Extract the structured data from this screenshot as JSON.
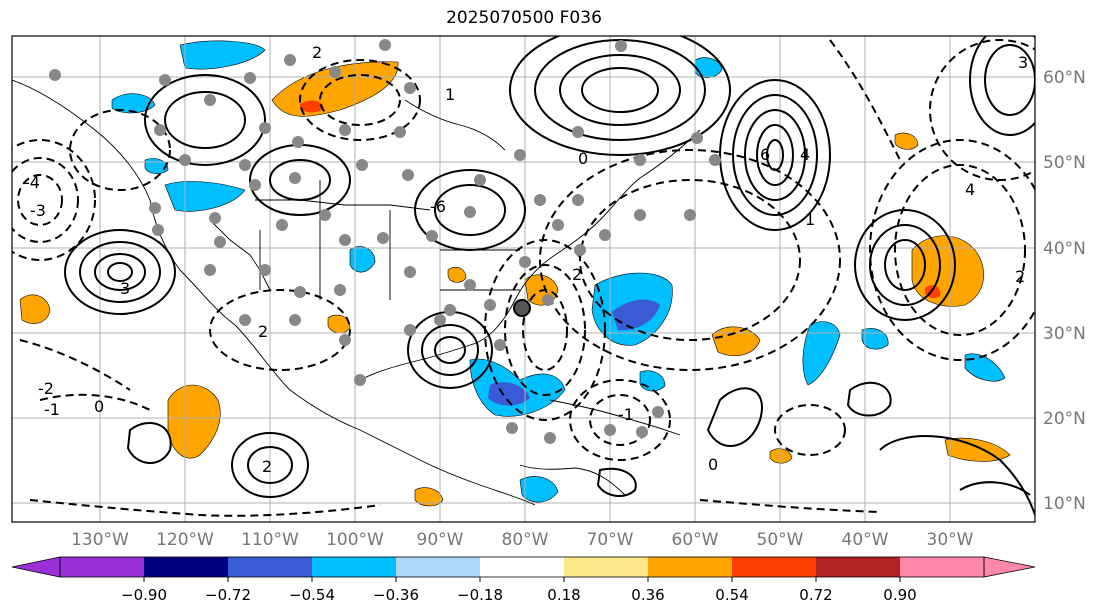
{
  "title": "2025070500 F036",
  "longitude_labels": [
    "130°W",
    "120°W",
    "110°W",
    "100°W",
    "90°W",
    "80°W",
    "70°W",
    "60°W",
    "50°W",
    "40°W",
    "30°W"
  ],
  "latitude_labels": [
    "60°N",
    "50°N",
    "40°N",
    "30°N",
    "20°N",
    "10°N"
  ],
  "colorbar": {
    "tick_labels": [
      "−0.90",
      "−0.72",
      "−0.54",
      "−0.36",
      "−0.18",
      "0.18",
      "0.36",
      "0.54",
      "0.72",
      "0.90"
    ],
    "colors": [
      "#9b30d8",
      "#00007f",
      "#3a5bd6",
      "#00bfff",
      "#add8f7",
      "#ffffff",
      "#ffe88a",
      "#ffa500",
      "#ff4000",
      "#b22222",
      "#ff88aa"
    ]
  },
  "contour_labels": [
    "3",
    "2",
    "6",
    "4",
    "2",
    "0",
    "-4",
    "-3",
    "-2",
    "-1",
    "0",
    "1",
    "2",
    "3",
    "4",
    "-6",
    "-1",
    "2",
    "1",
    "0",
    "2"
  ],
  "stations_marker": "gray-circle"
}
